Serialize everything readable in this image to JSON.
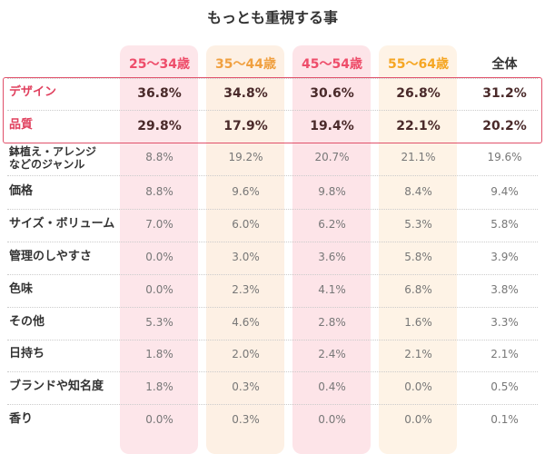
{
  "title": "もっとも重視する事",
  "table": {
    "columns": [
      "25〜34歳",
      "35〜44歳",
      "45〜54歳",
      "55〜64歳",
      "全体"
    ],
    "rows": [
      [
        "デザイン",
        "36.8%",
        "34.8%",
        "30.6%",
        "26.8%",
        "31.2%"
      ],
      [
        "品質",
        "29.8%",
        "17.9%",
        "19.4%",
        "22.1%",
        "20.2%"
      ],
      [
        "鉢植え・アレンジ\nなどのジャンル",
        "8.8%",
        "19.2%",
        "20.7%",
        "21.1%",
        "19.6%"
      ],
      [
        "価格",
        "8.8%",
        "9.6%",
        "9.8%",
        "8.4%",
        "9.4%"
      ],
      [
        "サイズ・ボリューム",
        "7.0%",
        "6.0%",
        "6.2%",
        "5.3%",
        "5.8%"
      ],
      [
        "管理のしやすさ",
        "0.0%",
        "3.0%",
        "3.6%",
        "5.8%",
        "3.9%"
      ],
      [
        "色味",
        "0.0%",
        "2.3%",
        "4.1%",
        "6.8%",
        "3.8%"
      ],
      [
        "その他",
        "5.3%",
        "4.6%",
        "2.8%",
        "1.6%",
        "3.3%"
      ],
      [
        "日持ち",
        "1.8%",
        "2.0%",
        "2.4%",
        "2.1%",
        "2.1%"
      ],
      [
        "ブランドや知名度",
        "1.8%",
        "0.3%",
        "0.4%",
        "0.0%",
        "0.5%"
      ],
      [
        "香り",
        "0.0%",
        "0.3%",
        "0.0%",
        "0.0%",
        "0.1%"
      ]
    ]
  }
}
